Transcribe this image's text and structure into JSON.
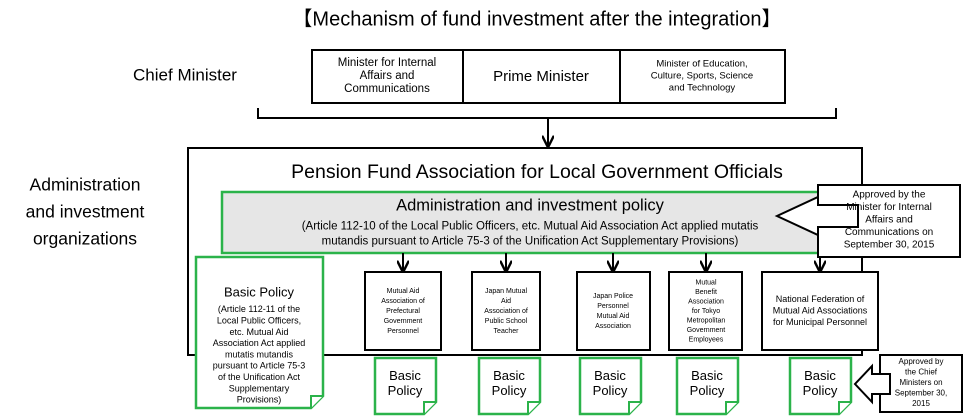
{
  "title": "【Mechanism of fund investment after the integration】",
  "chief_minister_label": "Chief Minister",
  "ministers": [
    [
      "Minister for Internal",
      "Affairs and",
      "Communications"
    ],
    [
      "Prime Minister"
    ],
    [
      "Minister of Education,",
      "Culture, Sports, Science",
      "and Technology"
    ]
  ],
  "association": "Pension Fund Association for Local Government Officials",
  "organizations_label": [
    "Administration",
    "and investment",
    "organizations"
  ],
  "policy": {
    "title": "Administration and investment policy",
    "lines": [
      "(Article 112-10 of the Local Public Officers, etc. Mutual Aid Association Act applied mutatis",
      "mutandis pursuant to Article 75-3 of the Unification Act Supplementary Provisions)"
    ]
  },
  "minister_approval": [
    "Approved by the",
    "Minister for Internal",
    "Affairs and",
    "Communications on",
    "September 30, 2015"
  ],
  "association_basic_policy": {
    "title": "Basic Policy",
    "lines": [
      "(Article 112-11 of the",
      "Local Public Officers,",
      "etc. Mutual Aid",
      "Association Act applied",
      "mutatis mutandis",
      "pursuant to Article 75-3",
      "of the Unification Act",
      "Supplementary",
      "Provisions)"
    ]
  },
  "organizations": [
    {
      "name": [
        "Mutual Aid",
        "Association of",
        "Prefectural",
        "Government",
        "Personnel"
      ],
      "basic_policy": [
        "Basic",
        "Policy"
      ]
    },
    {
      "name": [
        "Japan Mutual",
        "Aid",
        "Association of",
        "Public School",
        "Teacher"
      ],
      "basic_policy": [
        "Basic",
        "Policy"
      ]
    },
    {
      "name": [
        "Japan Police",
        "Personnel",
        "Mutual Aid",
        "Association"
      ],
      "basic_policy": [
        "Basic",
        "Policy"
      ]
    },
    {
      "name": [
        "Mutual",
        "Benefit",
        "Association",
        "for Tokyo",
        "Metropolitan",
        "Government",
        "Employees"
      ],
      "basic_policy": [
        "Basic",
        "Policy"
      ]
    },
    {
      "name": [
        "National Federation of",
        "Mutual Aid Associations",
        "for Municipal Personnel"
      ],
      "basic_policy": [
        "Basic",
        "Policy"
      ]
    }
  ],
  "chief_approval": [
    "Approved by",
    "the Chief",
    "Ministers on",
    "September 30,",
    "2015"
  ]
}
